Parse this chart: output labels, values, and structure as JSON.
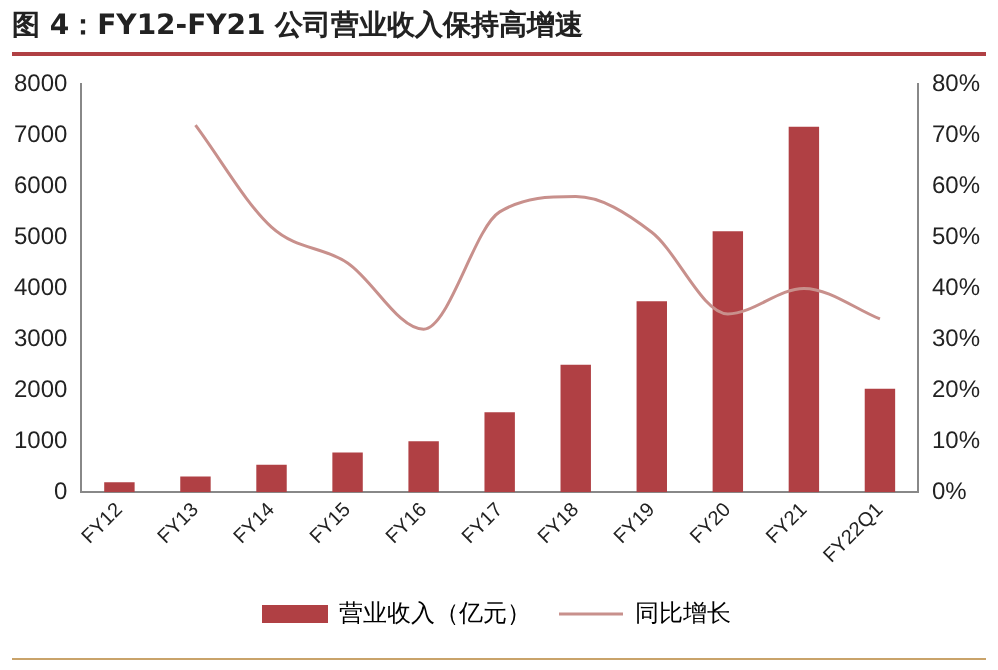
{
  "chart_data": {
    "type": "bar",
    "title": "图 4：FY12-FY21 公司营业收入保持高增速",
    "categories": [
      "FY12",
      "FY13",
      "FY14",
      "FY15",
      "FY16",
      "FY17",
      "FY18",
      "FY19",
      "FY20",
      "FY21",
      "FY22Q1"
    ],
    "series": [
      {
        "name": "营业收入（亿元）",
        "color": "#b04044",
        "values": [
          200,
          310,
          540,
          780,
          1000,
          1570,
          2500,
          3750,
          5120,
          7170,
          2030
        ]
      },
      {
        "name": "同比增长",
        "type": "line",
        "axis": "y2",
        "color": "#c8908c",
        "values": [
          null,
          72,
          52,
          45,
          32,
          55,
          58,
          51,
          35,
          40,
          34
        ]
      }
    ],
    "ylim": [
      0,
      8000
    ],
    "yticks": [
      0,
      1000,
      2000,
      3000,
      4000,
      5000,
      6000,
      7000,
      8000
    ],
    "y2lim": [
      0,
      80
    ],
    "y2ticks": [
      {
        "value": 0,
        "label": "0%"
      },
      {
        "value": 10,
        "label": "10%"
      },
      {
        "value": 20,
        "label": "20%"
      },
      {
        "value": 30,
        "label": "30%"
      },
      {
        "value": 40,
        "label": "40%"
      },
      {
        "value": 50,
        "label": "50%"
      },
      {
        "value": 60,
        "label": "60%"
      },
      {
        "value": 70,
        "label": "70%"
      },
      {
        "value": 80,
        "label": "80%"
      }
    ],
    "grid": false,
    "legend": "bottom",
    "marker": "none",
    "line_style": "solid"
  }
}
